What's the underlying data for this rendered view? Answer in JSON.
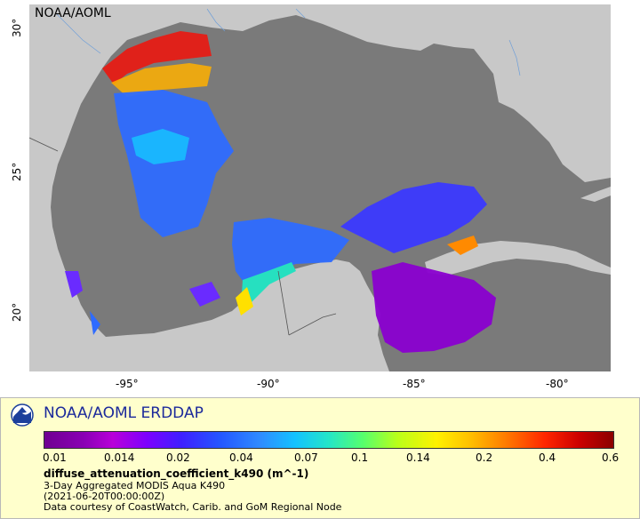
{
  "map": {
    "credit": "NOAA/AOML",
    "x_ticks": [
      "-95°",
      "-90°",
      "-85°",
      "-80°"
    ],
    "y_ticks": [
      "30°",
      "25°",
      "20°"
    ],
    "land_color": "#c8c8c8",
    "water_color": "#7a7a7a"
  },
  "legend": {
    "logo_icon": "noaa-logo-icon",
    "title": "NOAA/AOML ERDDAP",
    "colorbar_ticks": [
      "0.01",
      "0.014",
      "0.02",
      "0.04",
      "0.07",
      "0.1",
      "0.14",
      "0.2",
      "0.4",
      "0.6"
    ],
    "variable": "diffuse_attenuation_coefficient_k490 (m^-1)",
    "product": "3-Day Aggregated MODIS Aqua K490",
    "time": "(2021-06-20T00:00:00Z)",
    "courtesy": "Data courtesy of CoastWatch, Carib. and GoM Regional Node"
  }
}
